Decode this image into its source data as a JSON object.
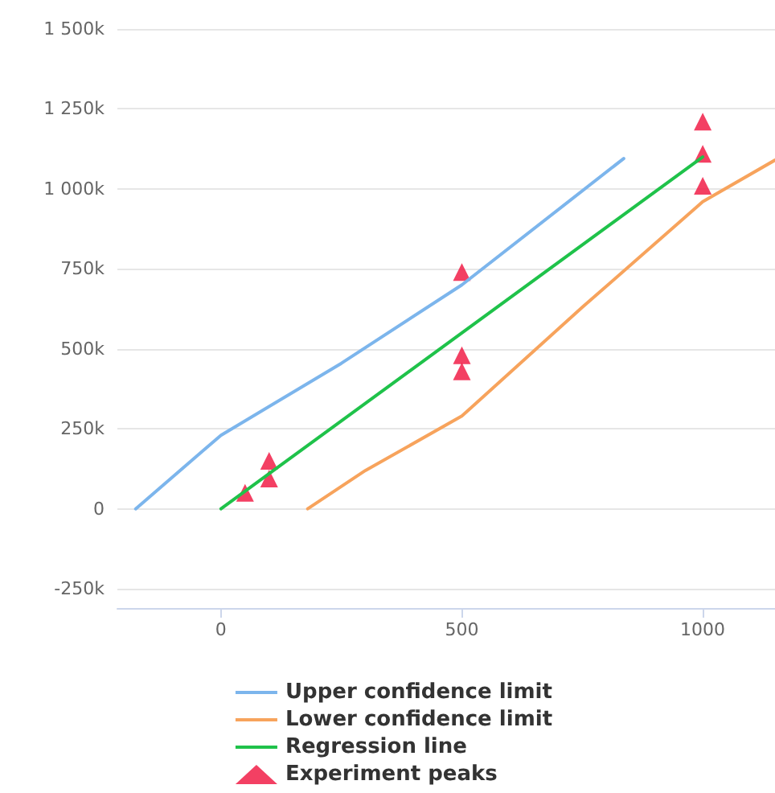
{
  "chart_data": {
    "type": "line",
    "xlim": [
      -215,
      1150
    ],
    "ylim": [
      -310000,
      1500000
    ],
    "xticks": [
      0,
      500,
      1000
    ],
    "yticks": [
      {
        "value": -250000,
        "label": "-250k"
      },
      {
        "value": 0,
        "label": "0"
      },
      {
        "value": 250000,
        "label": "250k"
      },
      {
        "value": 500000,
        "label": "500k"
      },
      {
        "value": 750000,
        "label": "750k"
      },
      {
        "value": 1000000,
        "label": "1 000k"
      },
      {
        "value": 1250000,
        "label": "1 250k"
      },
      {
        "value": 1500000,
        "label": "1 500k"
      }
    ],
    "grid": "y",
    "legend": "bottom",
    "marker": "none",
    "line_style": "solid",
    "series": [
      {
        "name": "Upper confidence limit",
        "color": "#7cb5ec",
        "x": [
          -177,
          0,
          250,
          500,
          836
        ],
        "values": [
          0,
          230000,
          455000,
          700000,
          1095000
        ]
      },
      {
        "name": "Lower confidence limit",
        "color": "#f7a35c",
        "x": [
          180,
          300,
          500,
          750,
          1000,
          1150
        ],
        "values": [
          0,
          120000,
          290000,
          630000,
          960000,
          1090000
        ]
      },
      {
        "name": "Regression line",
        "color": "#1fc24a",
        "x": [
          0,
          1000
        ],
        "values": [
          0,
          1100000
        ]
      },
      {
        "name": "Experiment peaks",
        "type": "scatter",
        "marker": "triangle",
        "color": "#f0103c",
        "x": [
          50,
          100,
          100,
          500,
          500,
          500,
          1000,
          1000,
          1000
        ],
        "values": [
          50000,
          150000,
          95000,
          740000,
          480000,
          430000,
          1210000,
          1110000,
          1010000
        ]
      }
    ]
  }
}
